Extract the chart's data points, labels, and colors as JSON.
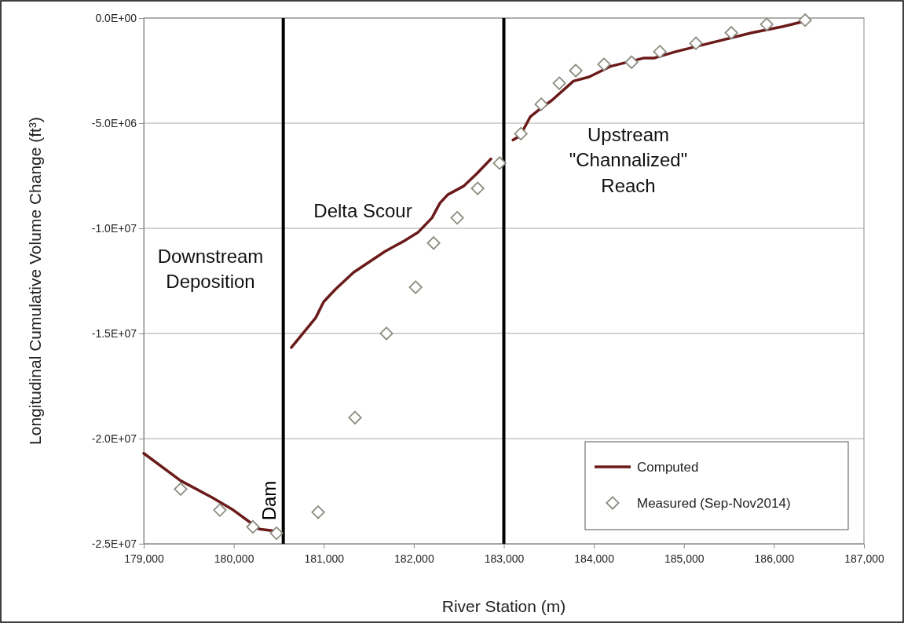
{
  "chart_data": {
    "type": "line",
    "xlabel": "River Station (m)",
    "ylabel": "Longitudinal Cumulative Volume Change (ft³)",
    "xlim": [
      179000,
      187000
    ],
    "ylim": [
      -25000000,
      0
    ],
    "xticks": [
      {
        "value": 179000,
        "label": "179,000"
      },
      {
        "value": 180000,
        "label": "180,000"
      },
      {
        "value": 181000,
        "label": "181,000"
      },
      {
        "value": 182000,
        "label": "182,000"
      },
      {
        "value": 183000,
        "label": "183,000"
      },
      {
        "value": 184000,
        "label": "184,000"
      },
      {
        "value": 185000,
        "label": "185,000"
      },
      {
        "value": 186000,
        "label": "186,000"
      },
      {
        "value": 187000,
        "label": "187,000"
      }
    ],
    "yticks": [
      {
        "value": -25000000,
        "label": "-2.5E+07"
      },
      {
        "value": -20000000,
        "label": "-2.0E+07"
      },
      {
        "value": -15000000,
        "label": "-1.5E+07"
      },
      {
        "value": -10000000,
        "label": "-1.0E+07"
      },
      {
        "value": -5000000,
        "label": "-5.0E+06"
      },
      {
        "value": 0,
        "label": "0.0E+00"
      }
    ],
    "grid": "y",
    "legend": "bottom right",
    "ref_lines": [
      {
        "axis": "x",
        "value": 180550,
        "label": "Dam",
        "color": "#000000"
      },
      {
        "axis": "x",
        "value": 183000,
        "label": null,
        "color": "#000000"
      }
    ],
    "annotations": [
      "Downstream\nDeposition",
      "Delta Scour",
      "Upstream\n\"Channalized\"\nReach"
    ],
    "series": [
      {
        "name": "Computed",
        "type": "line",
        "color": "#6b1a1a",
        "line_style": "solid",
        "marker": "none",
        "x": [
          179000,
          179410,
          179759,
          179995,
          180283,
          180475,
          180560,
          180640,
          180911,
          180998,
          181129,
          181330,
          181679,
          181880,
          182045,
          182202,
          182290,
          182377,
          182551,
          182700,
          182857,
          182950,
          183101,
          183180,
          183293,
          183380,
          183537,
          183773,
          183948,
          184183,
          184558,
          184672,
          184908,
          185283,
          185754,
          186103,
          186391
        ],
        "values": [
          -20700000,
          -22000000,
          -22800000,
          -23400000,
          -24300000,
          -24400000,
          null,
          -15670000,
          -14250000,
          -13500000,
          -12900000,
          -12100000,
          -11100000,
          -10630000,
          -10200000,
          -9500000,
          -8800000,
          -8400000,
          -8000000,
          -7400000,
          -6700000,
          null,
          -5800000,
          -5600000,
          -4700000,
          -4400000,
          -3900000,
          -3000000,
          -2800000,
          -2300000,
          -1900000,
          -1900000,
          -1600000,
          -1200000,
          -700000,
          -400000,
          -100000
        ]
      },
      {
        "name": "Measured (Sep-Nov2014)",
        "type": "scatter",
        "color": "#8c8c80",
        "marker": "diamond",
        "x": [
          179410,
          179846,
          180213,
          180475,
          180937,
          181347,
          181696,
          182020,
          182220,
          182482,
          182709,
          182953,
          183189,
          183415,
          183616,
          183799,
          184113,
          184419,
          184733,
          185134,
          185527,
          185920,
          186347
        ],
        "values": [
          -22400000,
          -23400000,
          -24200000,
          -24500000,
          -23500000,
          -19000000,
          -15000000,
          -12800000,
          -10700000,
          -9500000,
          -8100000,
          -6900000,
          -5500000,
          -4100000,
          -3100000,
          -2500000,
          -2200000,
          -2100000,
          -1600000,
          -1200000,
          -700000,
          -300000,
          -100000
        ]
      }
    ]
  }
}
